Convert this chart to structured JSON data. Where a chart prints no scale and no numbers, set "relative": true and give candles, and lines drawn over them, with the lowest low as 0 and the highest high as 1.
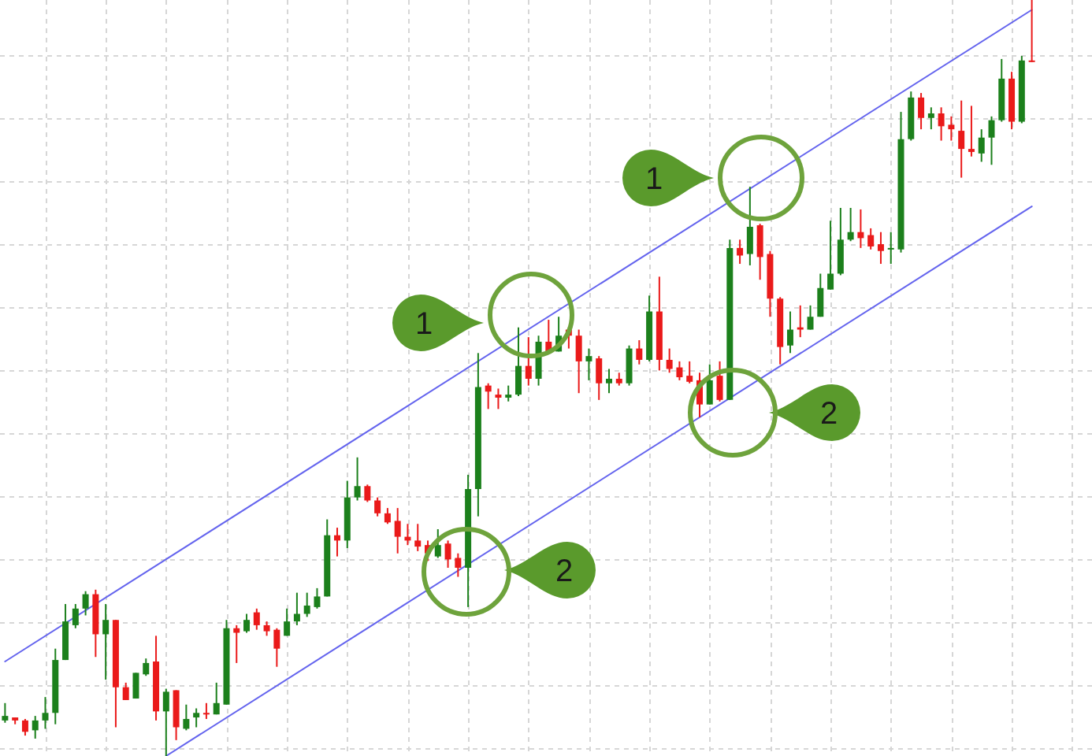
{
  "chart_data": {
    "type": "candlestick",
    "relative": true,
    "grid": true,
    "categories": [
      null,
      null,
      null,
      null,
      null,
      null,
      null,
      null,
      null,
      null,
      null,
      null,
      null,
      null,
      null,
      null,
      null,
      null,
      null,
      null,
      null,
      null,
      null,
      null,
      null,
      null,
      null,
      null,
      null,
      null,
      null,
      null,
      null,
      null,
      null,
      null,
      null,
      null,
      null,
      null,
      null,
      null,
      null,
      null,
      null,
      null,
      null,
      null,
      null,
      null,
      null,
      null,
      null,
      null,
      null,
      null,
      null,
      null,
      null,
      null,
      null,
      null,
      null,
      null,
      null,
      null,
      null,
      null,
      null,
      null,
      null,
      null,
      null,
      null,
      null,
      null,
      null,
      null,
      null,
      null,
      null,
      null,
      null,
      null,
      null,
      null,
      null,
      null,
      null,
      null,
      null,
      null,
      null,
      null,
      null,
      null,
      null,
      null,
      null,
      null,
      null,
      null,
      null
    ],
    "ohlc": [
      [
        0.047,
        0.07,
        0.044,
        0.053
      ],
      [
        0.051,
        0.051,
        0.042,
        0.047
      ],
      [
        0.047,
        0.049,
        0.027,
        0.032
      ],
      [
        0.034,
        0.053,
        0.023,
        0.047
      ],
      [
        0.047,
        0.078,
        0.036,
        0.057
      ],
      [
        0.057,
        0.142,
        0.042,
        0.127
      ],
      [
        0.127,
        0.201,
        0.127,
        0.178
      ],
      [
        0.173,
        0.201,
        0.169,
        0.195
      ],
      [
        0.195,
        0.218,
        0.186,
        0.214
      ],
      [
        0.214,
        0.22,
        0.131,
        0.161
      ],
      [
        0.161,
        0.201,
        0.101,
        0.18
      ],
      [
        0.18,
        0.18,
        0.038,
        0.091
      ],
      [
        0.091,
        0.097,
        0.074,
        0.074
      ],
      [
        0.076,
        0.11,
        0.076,
        0.11
      ],
      [
        0.108,
        0.129,
        0.106,
        0.123
      ],
      [
        0.125,
        0.159,
        0.047,
        0.059
      ],
      [
        0.059,
        0.089,
        0,
        0.085
      ],
      [
        0.087,
        0.087,
        0.021,
        0.038
      ],
      [
        0.036,
        0.068,
        0.034,
        0.049
      ],
      [
        0.051,
        0.063,
        0.038,
        0.057
      ],
      [
        0.057,
        0.07,
        0.049,
        0.055
      ],
      [
        0.055,
        0.097,
        0.055,
        0.07
      ],
      [
        0.068,
        0.18,
        0.068,
        0.169
      ],
      [
        0.169,
        0.173,
        0.123,
        0.163
      ],
      [
        0.165,
        0.188,
        0.163,
        0.18
      ],
      [
        0.19,
        0.195,
        0.167,
        0.173
      ],
      [
        0.173,
        0.178,
        0.159,
        0.165
      ],
      [
        0.167,
        0.169,
        0.118,
        0.142
      ],
      [
        0.159,
        0.195,
        0.159,
        0.178
      ],
      [
        0.178,
        0.216,
        0.173,
        0.188
      ],
      [
        0.188,
        0.216,
        0.184,
        0.199
      ],
      [
        0.197,
        0.222,
        0.195,
        0.211
      ],
      [
        0.211,
        0.313,
        0.211,
        0.292
      ],
      [
        0.292,
        0.302,
        0.264,
        0.285
      ],
      [
        0.285,
        0.364,
        0.275,
        0.342
      ],
      [
        0.342,
        0.395,
        0.338,
        0.357
      ],
      [
        0.357,
        0.359,
        0.336,
        0.338
      ],
      [
        0.338,
        0.342,
        0.317,
        0.321
      ],
      [
        0.321,
        0.328,
        0.307,
        0.309
      ],
      [
        0.311,
        0.328,
        0.268,
        0.29
      ],
      [
        0.29,
        0.307,
        0.279,
        0.285
      ],
      [
        0.285,
        0.307,
        0.271,
        0.277
      ],
      [
        0.279,
        0.285,
        0.258,
        0.268
      ],
      [
        0.264,
        0.3,
        0.262,
        0.279
      ],
      [
        0.281,
        0.285,
        0.249,
        0.26
      ],
      [
        0.262,
        0.268,
        0.237,
        0.249
      ],
      [
        0.249,
        0.372,
        0.197,
        0.353
      ],
      [
        0.353,
        0.533,
        0.317,
        0.488
      ],
      [
        0.49,
        0.493,
        0.459,
        0.482
      ],
      [
        0.478,
        0.486,
        0.459,
        0.474
      ],
      [
        0.474,
        0.49,
        0.469,
        0.478
      ],
      [
        0.478,
        0.567,
        0.476,
        0.516
      ],
      [
        0.516,
        0.554,
        0.49,
        0.499
      ],
      [
        0.499,
        0.556,
        0.49,
        0.548
      ],
      [
        0.548,
        0.577,
        0.533,
        0.535
      ],
      [
        0.535,
        0.581,
        0.535,
        0.556
      ],
      [
        0.564,
        0.567,
        0.539,
        0.556
      ],
      [
        0.556,
        0.564,
        0.48,
        0.522
      ],
      [
        0.522,
        0.539,
        0.497,
        0.529
      ],
      [
        0.526,
        0.529,
        0.471,
        0.493
      ],
      [
        0.493,
        0.512,
        0.48,
        0.499
      ],
      [
        0.499,
        0.507,
        0.49,
        0.493
      ],
      [
        0.493,
        0.543,
        0.49,
        0.539
      ],
      [
        0.539,
        0.55,
        0.518,
        0.524
      ],
      [
        0.524,
        0.609,
        0.522,
        0.588
      ],
      [
        0.588,
        0.634,
        0.51,
        0.524
      ],
      [
        0.524,
        0.539,
        0.507,
        0.512
      ],
      [
        0.514,
        0.522,
        0.497,
        0.501
      ],
      [
        0.503,
        0.522,
        0.493,
        0.495
      ],
      [
        0.497,
        0.507,
        0.448,
        0.465
      ],
      [
        0.465,
        0.518,
        0.465,
        0.497
      ],
      [
        0.503,
        0.522,
        0.469,
        0.471
      ],
      [
        0.471,
        0.683,
        0.471,
        0.672
      ],
      [
        0.672,
        0.683,
        0.651,
        0.662
      ],
      [
        0.664,
        0.753,
        0.649,
        0.7
      ],
      [
        0.702,
        0.704,
        0.63,
        0.66
      ],
      [
        0.664,
        0.668,
        0.581,
        0.605
      ],
      [
        0.605,
        0.607,
        0.518,
        0.541
      ],
      [
        0.543,
        0.588,
        0.533,
        0.564
      ],
      [
        0.567,
        0.596,
        0.554,
        0.564
      ],
      [
        0.564,
        0.596,
        0.564,
        0.581
      ],
      [
        0.581,
        0.638,
        0.581,
        0.619
      ],
      [
        0.617,
        0.708,
        0.617,
        0.638
      ],
      [
        0.638,
        0.725,
        0.636,
        0.683
      ],
      [
        0.683,
        0.725,
        0.681,
        0.693
      ],
      [
        0.693,
        0.723,
        0.672,
        0.685
      ],
      [
        0.689,
        0.698,
        0.67,
        0.674
      ],
      [
        0.677,
        0.693,
        0.651,
        0.668
      ],
      [
        0.67,
        0.693,
        0.651,
        0.672
      ],
      [
        0.67,
        0.852,
        0.666,
        0.816
      ],
      [
        0.816,
        0.879,
        0.814,
        0.871
      ],
      [
        0.871,
        0.877,
        0.829,
        0.844
      ],
      [
        0.844,
        0.858,
        0.829,
        0.85
      ],
      [
        0.85,
        0.858,
        0.814,
        0.833
      ],
      [
        0.835,
        0.846,
        0.814,
        0.829
      ],
      [
        0.827,
        0.867,
        0.765,
        0.803
      ],
      [
        0.803,
        0.86,
        0.793,
        0.799
      ],
      [
        0.797,
        0.829,
        0.786,
        0.818
      ],
      [
        0.818,
        0.846,
        0.782,
        0.841
      ],
      [
        0.841,
        0.922,
        0.839,
        0.896
      ],
      [
        0.896,
        0.905,
        0.829,
        0.839
      ],
      [
        0.839,
        0.926,
        0.837,
        0.92
      ],
      [
        0.92,
        1,
        0.918,
        0.918
      ]
    ],
    "series": [
      {
        "type": "line",
        "color": "#6464ee",
        "values": [
          0.125,
          null,
          null,
          null,
          null,
          null,
          null,
          null,
          null,
          null,
          null,
          null,
          null,
          null,
          null,
          null,
          null,
          null,
          null,
          null,
          null,
          null,
          null,
          null,
          null,
          null,
          null,
          null,
          null,
          null,
          null,
          null,
          null,
          null,
          null,
          null,
          null,
          null,
          null,
          null,
          null,
          null,
          null,
          null,
          null,
          null,
          null,
          null,
          null,
          null,
          null,
          null,
          null,
          null,
          null,
          null,
          null,
          null,
          null,
          null,
          null,
          null,
          null,
          null,
          null,
          null,
          null,
          null,
          null,
          null,
          null,
          null,
          null,
          null,
          null,
          null,
          null,
          null,
          null,
          null,
          null,
          null,
          null,
          null,
          null,
          null,
          null,
          null,
          null,
          null,
          null,
          null,
          null,
          null,
          null,
          null,
          null,
          null,
          null,
          null,
          null,
          null,
          0.987
        ]
      },
      {
        "type": "line",
        "color": "#6464ee",
        "values": [
          null,
          null,
          null,
          null,
          null,
          null,
          null,
          null,
          null,
          null,
          null,
          null,
          null,
          null,
          null,
          null,
          0,
          null,
          null,
          null,
          null,
          null,
          null,
          null,
          null,
          null,
          null,
          null,
          null,
          null,
          null,
          null,
          null,
          null,
          null,
          null,
          null,
          null,
          null,
          null,
          null,
          null,
          null,
          null,
          null,
          null,
          null,
          null,
          null,
          null,
          null,
          null,
          null,
          null,
          null,
          null,
          null,
          null,
          null,
          null,
          null,
          null,
          null,
          null,
          null,
          null,
          null,
          null,
          null,
          null,
          null,
          null,
          null,
          null,
          null,
          null,
          null,
          null,
          null,
          null,
          null,
          null,
          null,
          null,
          null,
          null,
          null,
          null,
          null,
          null,
          null,
          null,
          null,
          null,
          null,
          null,
          null,
          null,
          null,
          null,
          null,
          null,
          0.727
        ]
      }
    ],
    "annotations": [
      "1",
      "1",
      "2",
      "2"
    ]
  }
}
